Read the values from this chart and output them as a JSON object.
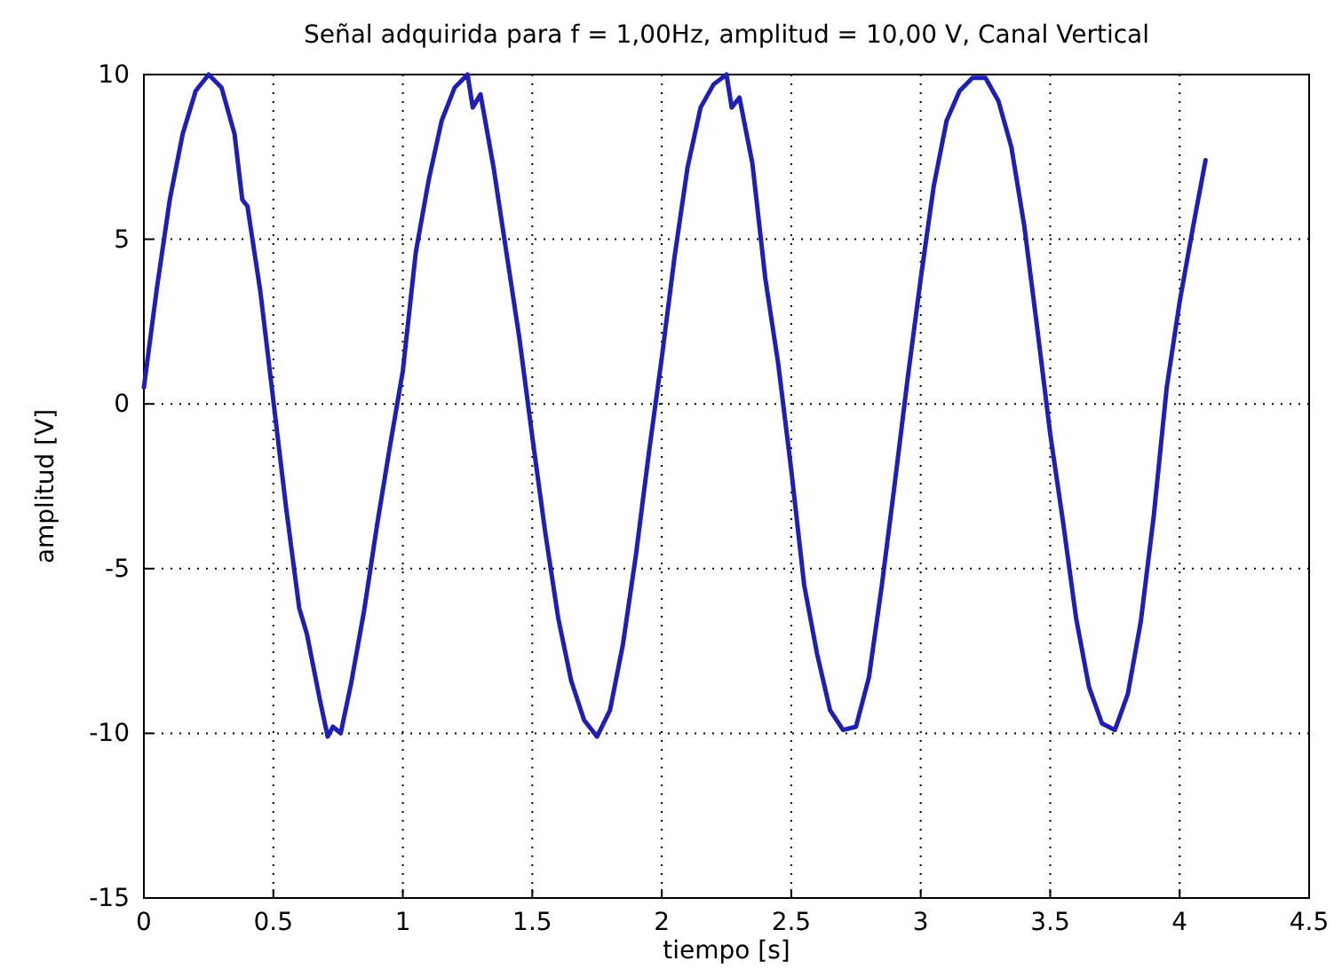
{
  "chart_data": {
    "type": "line",
    "title": "Señal adquirida para f = 1,00Hz, amplitud = 10,00 V, Canal Vertical",
    "xlabel": "tiempo [s]",
    "ylabel": "amplitud [V]",
    "xlim": [
      0,
      4.5
    ],
    "xticks": [
      0,
      0.5,
      1,
      1.5,
      2,
      2.5,
      3,
      3.5,
      4,
      4.5
    ],
    "ylim": [
      -15,
      10
    ],
    "yticks": [
      -15,
      -10,
      -5,
      0,
      5,
      10
    ],
    "grid": true,
    "line_style": "solid",
    "marker": "none",
    "series": [
      {
        "color": "#1f1fb4",
        "x": [
          0,
          0.05,
          0.1,
          0.15,
          0.2,
          0.25,
          0.3,
          0.35,
          0.38,
          0.4,
          0.45,
          0.5,
          0.55,
          0.6,
          0.63,
          0.68,
          0.71,
          0.73,
          0.76,
          0.8,
          0.85,
          0.9,
          0.95,
          1.0,
          1.05,
          1.1,
          1.15,
          1.2,
          1.25,
          1.27,
          1.3,
          1.35,
          1.4,
          1.45,
          1.5,
          1.55,
          1.6,
          1.65,
          1.7,
          1.75,
          1.8,
          1.85,
          1.9,
          1.95,
          2.0,
          2.05,
          2.1,
          2.15,
          2.2,
          2.25,
          2.27,
          2.3,
          2.35,
          2.4,
          2.45,
          2.5,
          2.55,
          2.6,
          2.65,
          2.7,
          2.75,
          2.8,
          2.85,
          2.9,
          2.95,
          3.0,
          3.05,
          3.1,
          3.15,
          3.2,
          3.25,
          3.3,
          3.35,
          3.4,
          3.45,
          3.5,
          3.55,
          3.6,
          3.65,
          3.7,
          3.75,
          3.8,
          3.85,
          3.9,
          3.95,
          4.0,
          4.05,
          4.1
        ],
        "values": [
          0.5,
          3.5,
          6.2,
          8.2,
          9.5,
          10,
          9.6,
          8.2,
          6.2,
          6.0,
          3.4,
          0.1,
          -3.2,
          -6.2,
          -7.0,
          -9.0,
          -10.1,
          -9.8,
          -10.0,
          -8.5,
          -6.3,
          -3.7,
          -1.3,
          1.0,
          4.6,
          6.8,
          8.6,
          9.6,
          10,
          9.0,
          9.4,
          7.2,
          4.6,
          2.0,
          -1.0,
          -3.9,
          -6.5,
          -8.4,
          -9.6,
          -10.1,
          -9.3,
          -7.3,
          -4.6,
          -1.5,
          1.4,
          4.5,
          7.2,
          9.0,
          9.7,
          10,
          9.0,
          9.3,
          7.3,
          3.8,
          1.2,
          -2.0,
          -5.5,
          -7.6,
          -9.3,
          -9.9,
          -9.8,
          -8.3,
          -5.5,
          -2.4,
          0.8,
          3.8,
          6.6,
          8.6,
          9.5,
          9.9,
          9.9,
          9.2,
          7.8,
          5.4,
          2.3,
          -0.9,
          -3.6,
          -6.5,
          -8.6,
          -9.7,
          -9.9,
          -8.8,
          -6.6,
          -3.4,
          0.5,
          3.1,
          5.3,
          7.4
        ]
      }
    ]
  }
}
